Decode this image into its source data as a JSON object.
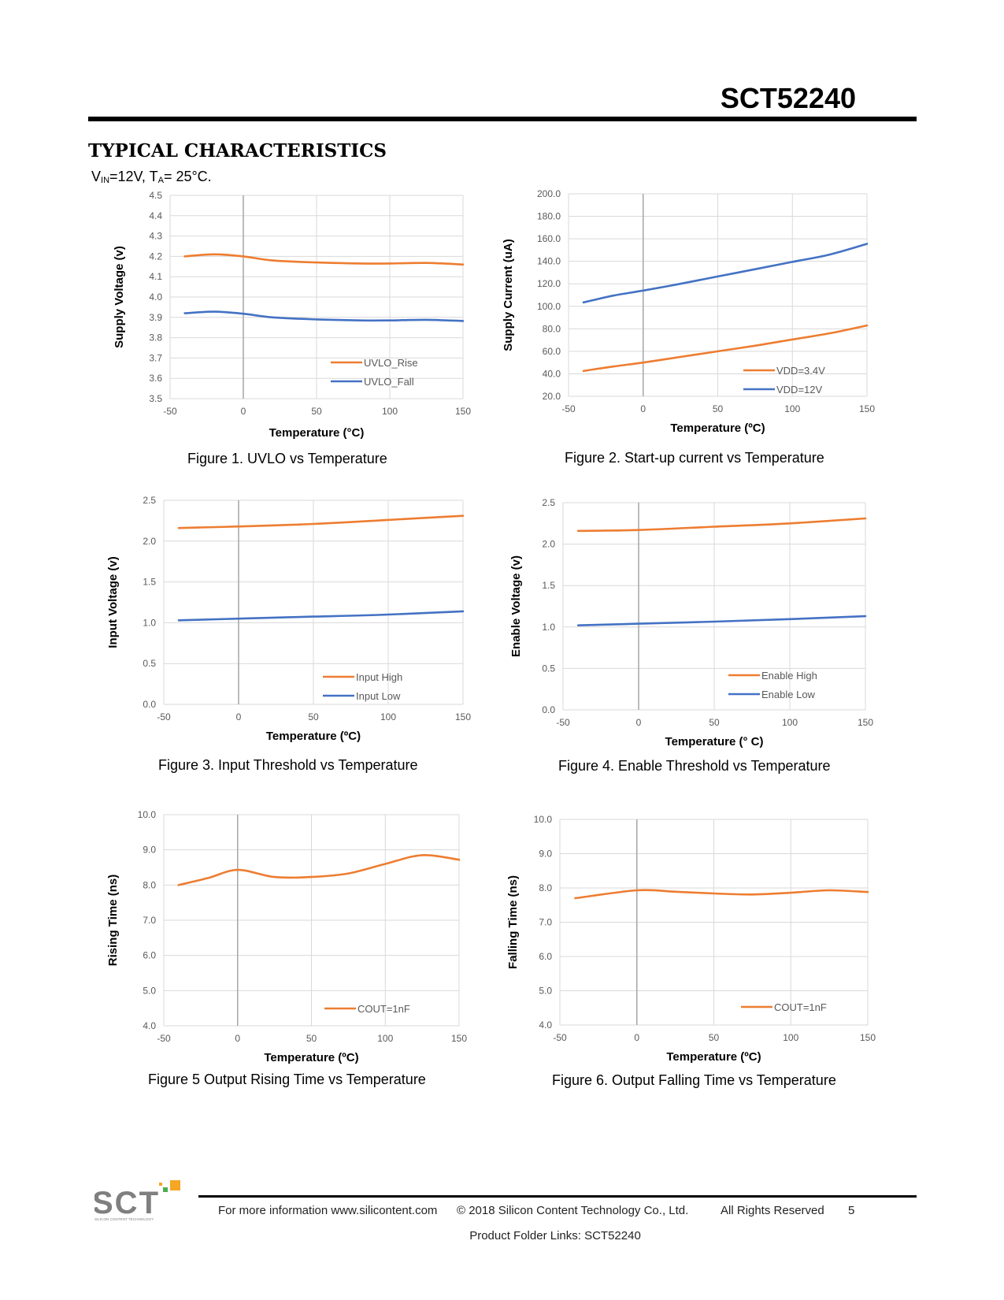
{
  "header": {
    "part_number": "SCT52240",
    "section_title": "TYPICAL CHARACTERISTICS"
  },
  "conditions": {
    "v_sym": "V",
    "v_sub": "IN",
    "v_val": "=12V, ",
    "t_sym": "T",
    "t_sub": "A",
    "t_val": "= 25°C."
  },
  "captions": {
    "fig1": "Figure 1. UVLO vs Temperature",
    "fig2": "Figure 2. Start-up current vs Temperature",
    "fig3": "Figure 3. Input Threshold vs Temperature",
    "fig4": "Figure 4. Enable Threshold vs Temperature",
    "fig5": "Figure 5 Output Rising Time vs Temperature",
    "fig6": "Figure 6. Output Falling Time vs Temperature"
  },
  "colors": {
    "orange": "#ED7D31",
    "blue": "#4472C4",
    "grid": "#D9D9D9",
    "zero_axis": "#A6A6A6"
  },
  "chart_data": [
    {
      "id": "fig1",
      "type": "line",
      "xlabel": "Temperature (°C)",
      "ylabel": "Supply Voltage (v)",
      "xlim": [
        -50,
        150
      ],
      "ylim": [
        3.5,
        4.5
      ],
      "xticks": [
        -50,
        0,
        50,
        100,
        150
      ],
      "xtick_labels": [
        "-50",
        "0",
        "50",
        "100",
        "150"
      ],
      "yticks": [
        3.5,
        3.6,
        3.7,
        3.8,
        3.9,
        4.0,
        4.1,
        4.2,
        4.3,
        4.4,
        4.5
      ],
      "ytick_labels": [
        "3.5",
        "3.6",
        "3.7",
        "3.8",
        "3.9",
        "4.0",
        "4.1",
        "4.2",
        "4.3",
        "4.4",
        "4.5"
      ],
      "legend": "bottom-right",
      "series": [
        {
          "name": "UVLO_Rise",
          "color": "orange",
          "x": [
            -40,
            -20,
            0,
            20,
            50,
            80,
            100,
            125,
            150
          ],
          "y": [
            4.2,
            4.21,
            4.2,
            4.18,
            4.17,
            4.165,
            4.165,
            4.168,
            4.16
          ]
        },
        {
          "name": "UVLO_Fall",
          "color": "blue",
          "x": [
            -40,
            -20,
            0,
            20,
            50,
            80,
            100,
            125,
            150
          ],
          "y": [
            3.92,
            3.928,
            3.918,
            3.9,
            3.89,
            3.885,
            3.885,
            3.888,
            3.882
          ]
        }
      ]
    },
    {
      "id": "fig2",
      "type": "line",
      "xlabel": "Temperature (ºC)",
      "ylabel": "Supply Current (uA)",
      "xlim": [
        -50,
        150
      ],
      "ylim": [
        20,
        200
      ],
      "xticks": [
        -50,
        0,
        50,
        100,
        150
      ],
      "xtick_labels": [
        "-50",
        "0",
        "50",
        "100",
        "150"
      ],
      "yticks": [
        20,
        40,
        60,
        80,
        100,
        120,
        140,
        160,
        180,
        200
      ],
      "ytick_labels": [
        "20.0",
        "40.0",
        "60.0",
        "80.0",
        "100.0",
        "120.0",
        "140.0",
        "160.0",
        "180.0",
        "200.0"
      ],
      "legend": "bottom-right",
      "series": [
        {
          "name": "VDD=3.4V",
          "color": "orange",
          "x": [
            -40,
            -20,
            0,
            25,
            50,
            75,
            100,
            125,
            150
          ],
          "y": [
            42.5,
            46.5,
            50,
            55,
            60,
            65,
            70.5,
            76,
            83
          ]
        },
        {
          "name": "VDD=12V",
          "color": "blue",
          "x": [
            -40,
            -20,
            0,
            25,
            50,
            75,
            100,
            125,
            150
          ],
          "y": [
            103.5,
            109.5,
            114,
            120,
            126.5,
            133,
            139.5,
            146,
            155.5
          ]
        }
      ]
    },
    {
      "id": "fig3",
      "type": "line",
      "xlabel": "Temperature (ºC)",
      "ylabel": "Input Voltage (v)",
      "xlim": [
        -50,
        150
      ],
      "ylim": [
        0,
        2.5
      ],
      "xticks": [
        -50,
        0,
        50,
        100,
        150
      ],
      "xtick_labels": [
        "-50",
        "0",
        "50",
        "100",
        "150"
      ],
      "yticks": [
        0,
        0.5,
        1.0,
        1.5,
        2.0,
        2.5
      ],
      "ytick_labels": [
        "0.0",
        "0.5",
        "1.0",
        "1.5",
        "2.0",
        "2.5"
      ],
      "legend": "bottom-right",
      "series": [
        {
          "name": "Input High",
          "color": "orange",
          "x": [
            -40,
            0,
            50,
            100,
            150
          ],
          "y": [
            2.16,
            2.18,
            2.21,
            2.26,
            2.31
          ]
        },
        {
          "name": "Input Low",
          "color": "blue",
          "x": [
            -40,
            0,
            50,
            100,
            150
          ],
          "y": [
            1.03,
            1.05,
            1.075,
            1.1,
            1.14
          ]
        }
      ]
    },
    {
      "id": "fig4",
      "type": "line",
      "xlabel": "Temperature (° C)",
      "ylabel": "Enable Voltage (v)",
      "xlim": [
        -50,
        150
      ],
      "ylim": [
        0,
        2.5
      ],
      "xticks": [
        -50,
        0,
        50,
        100,
        150
      ],
      "xtick_labels": [
        "-50",
        "0",
        "50",
        "100",
        "150"
      ],
      "yticks": [
        0,
        0.5,
        1.0,
        1.5,
        2.0,
        2.5
      ],
      "ytick_labels": [
        "0.0",
        "0.5",
        "1.0",
        "1.5",
        "2.0",
        "2.5"
      ],
      "legend": "bottom-right",
      "series": [
        {
          "name": "Enable High",
          "color": "orange",
          "x": [
            -40,
            0,
            50,
            100,
            150
          ],
          "y": [
            2.16,
            2.17,
            2.21,
            2.25,
            2.31
          ]
        },
        {
          "name": "Enable Low",
          "color": "blue",
          "x": [
            -40,
            0,
            50,
            100,
            150
          ],
          "y": [
            1.02,
            1.04,
            1.065,
            1.095,
            1.13
          ]
        }
      ]
    },
    {
      "id": "fig5",
      "type": "line",
      "xlabel": "Temperature (ºC)",
      "ylabel": "Rising Time (ns)",
      "xlim": [
        -50,
        150
      ],
      "ylim": [
        4,
        10
      ],
      "xticks": [
        -50,
        0,
        50,
        100,
        150
      ],
      "xtick_labels": [
        "-50",
        "0",
        "50",
        "100",
        "150"
      ],
      "yticks": [
        4,
        5,
        6,
        7,
        8,
        9,
        10
      ],
      "ytick_labels": [
        "4.0",
        "5.0",
        "6.0",
        "7.0",
        "8.0",
        "9.0",
        "10.0"
      ],
      "legend": "bottom-right",
      "series": [
        {
          "name": "COUT=1nF",
          "color": "orange",
          "x": [
            -40,
            -20,
            0,
            25,
            50,
            75,
            100,
            125,
            150
          ],
          "y": [
            8.0,
            8.2,
            8.43,
            8.23,
            8.23,
            8.33,
            8.6,
            8.85,
            8.72
          ]
        }
      ]
    },
    {
      "id": "fig6",
      "type": "line",
      "xlabel": "Temperature (ºC)",
      "ylabel": "Falling Time (ns)",
      "xlim": [
        -50,
        150
      ],
      "ylim": [
        4,
        10
      ],
      "xticks": [
        -50,
        0,
        50,
        100,
        150
      ],
      "xtick_labels": [
        "-50",
        "0",
        "50",
        "100",
        "150"
      ],
      "yticks": [
        4,
        5,
        6,
        7,
        8,
        9,
        10
      ],
      "ytick_labels": [
        "4.0",
        "5.0",
        "6.0",
        "7.0",
        "8.0",
        "9.0",
        "10.0"
      ],
      "legend": "bottom-right",
      "series": [
        {
          "name": "COUT=1nF",
          "color": "orange",
          "x": [
            -40,
            0,
            25,
            50,
            75,
            100,
            125,
            150
          ],
          "y": [
            7.7,
            7.93,
            7.89,
            7.84,
            7.81,
            7.86,
            7.93,
            7.88
          ]
        }
      ]
    }
  ],
  "footer": {
    "logo_text": "SCT",
    "logo_tagline": "SILICON CONTENT TECHNOLOGY",
    "info": "For more information www.silicontent.com",
    "copyright": "© 2018 Silicon Content Technology Co., Ltd.",
    "rights": "All Rights Reserved",
    "page": "5",
    "folder_links": "Product Folder Links: SCT52240"
  }
}
